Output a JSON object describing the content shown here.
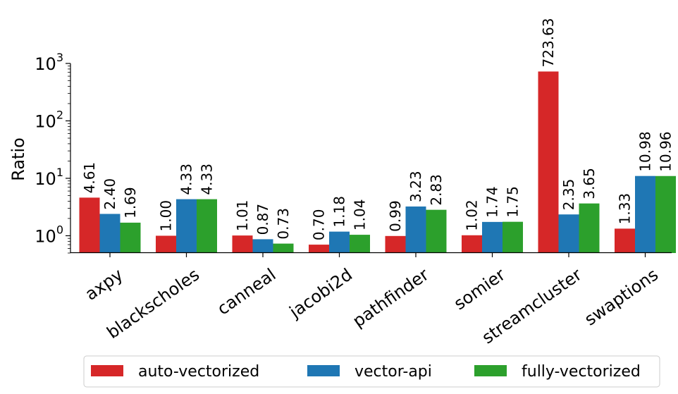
{
  "chart_data": {
    "type": "bar",
    "title": "",
    "xlabel": "",
    "ylabel": "Ratio",
    "yscale": "log",
    "ylim": [
      0.5,
      1000
    ],
    "y_ticks": [
      {
        "value": 1,
        "base": "10",
        "exp": "0"
      },
      {
        "value": 10,
        "base": "10",
        "exp": "1"
      },
      {
        "value": 100,
        "base": "10",
        "exp": "2"
      },
      {
        "value": 1000,
        "base": "10",
        "exp": "3"
      }
    ],
    "grid": false,
    "legend_position": "bottom-center",
    "categories": [
      "axpy",
      "blackscholes",
      "canneal",
      "jacobi2d",
      "pathfinder",
      "somier",
      "streamcluster",
      "swaptions"
    ],
    "series": [
      {
        "name": "auto-vectorized",
        "color": "#d62728",
        "values": [
          4.61,
          1.0,
          1.01,
          0.7,
          0.99,
          1.02,
          723.63,
          1.33
        ],
        "labels": [
          "4.61",
          "1.00",
          "1.01",
          "0.70",
          "0.99",
          "1.02",
          "723.63",
          "1.33"
        ]
      },
      {
        "name": "vector-api",
        "color": "#1f77b4",
        "values": [
          2.4,
          4.33,
          0.87,
          1.18,
          3.23,
          1.74,
          2.35,
          10.98
        ],
        "labels": [
          "2.40",
          "4.33",
          "0.87",
          "1.18",
          "3.23",
          "1.74",
          "2.35",
          "10.98"
        ]
      },
      {
        "name": "fully-vectorized",
        "color": "#2ca02c",
        "values": [
          1.69,
          4.33,
          0.73,
          1.04,
          2.83,
          1.75,
          3.65,
          10.96
        ],
        "labels": [
          "1.69",
          "4.33",
          "0.73",
          "1.04",
          "2.83",
          "1.75",
          "3.65",
          "10.96"
        ]
      }
    ]
  }
}
